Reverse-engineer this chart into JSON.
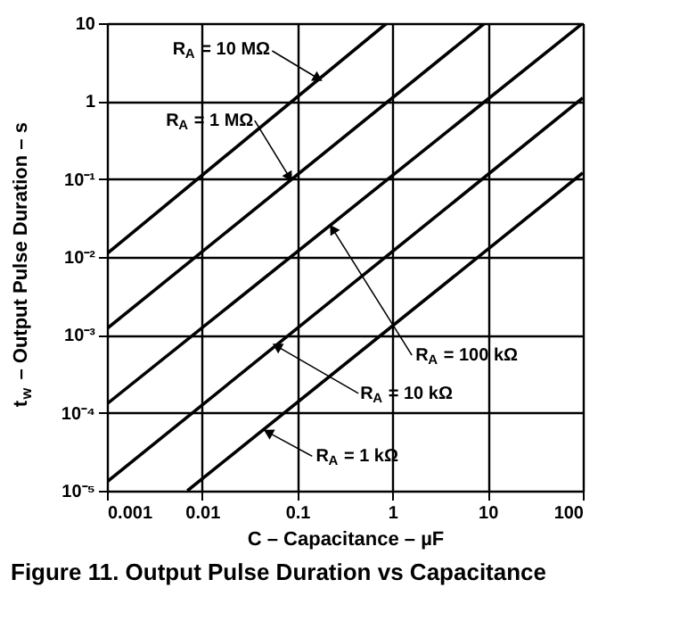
{
  "chart_data": {
    "type": "line",
    "title": "Figure 11. Output Pulse Duration vs Capacitance",
    "xlabel": "C – Capacitance – µF",
    "ylabel": "t$_{w}$ – Output Pulse Duration – s",
    "log": "xy",
    "grid": true,
    "marker": "none",
    "line_style": "solid",
    "xlim": [
      0.001,
      100
    ],
    "xticks": [
      0.001,
      0.01,
      0.1,
      1,
      10,
      100
    ],
    "ylim": [
      1e-05,
      10
    ],
    "yticks": [
      {
        "value": 1e-05,
        "label": "10⁻⁵"
      },
      {
        "value": 0.0001,
        "label": "10⁻⁴"
      },
      {
        "value": 0.001,
        "label": "10⁻³"
      },
      {
        "value": 0.01,
        "label": "10⁻²"
      },
      {
        "value": 0.1,
        "label": "10⁻¹"
      },
      1,
      10
    ],
    "series": [
      {
        "color": "#000000",
        "x": [
          0.001,
          0.87
        ],
        "values": [
          0.011,
          10
        ]
      },
      {
        "color": "#000000",
        "x": [
          0.001,
          9.3
        ],
        "values": [
          0.0012,
          10
        ]
      },
      {
        "color": "#000000",
        "x": [
          0.001,
          100
        ],
        "values": [
          0.00013,
          10
        ]
      },
      {
        "color": "#000000",
        "x": [
          0.001,
          100
        ],
        "values": [
          1.3e-05,
          1.1
        ]
      },
      {
        "color": "#000000",
        "x": [
          0.007,
          100
        ],
        "values": [
          1e-05,
          0.12
        ]
      }
    ],
    "annotations": [
      {
        "text": "R$_{A}$ = 10 MΩ",
        "x": 0.16,
        "y": 2
      },
      {
        "text": "R$_{A}$ = 1 MΩ",
        "x": 0.081,
        "y": 0.11
      },
      {
        "text": "R$_{A}$ = 100 kΩ",
        "x": 0.24,
        "y": 0.022
      },
      {
        "text": "R$_{A}$ = 10 kΩ",
        "x": 0.063,
        "y": 0.0007
      },
      {
        "text": "R$_{A}$ = 1 kΩ",
        "x": 0.051,
        "y": 5.5e-05
      }
    ]
  }
}
